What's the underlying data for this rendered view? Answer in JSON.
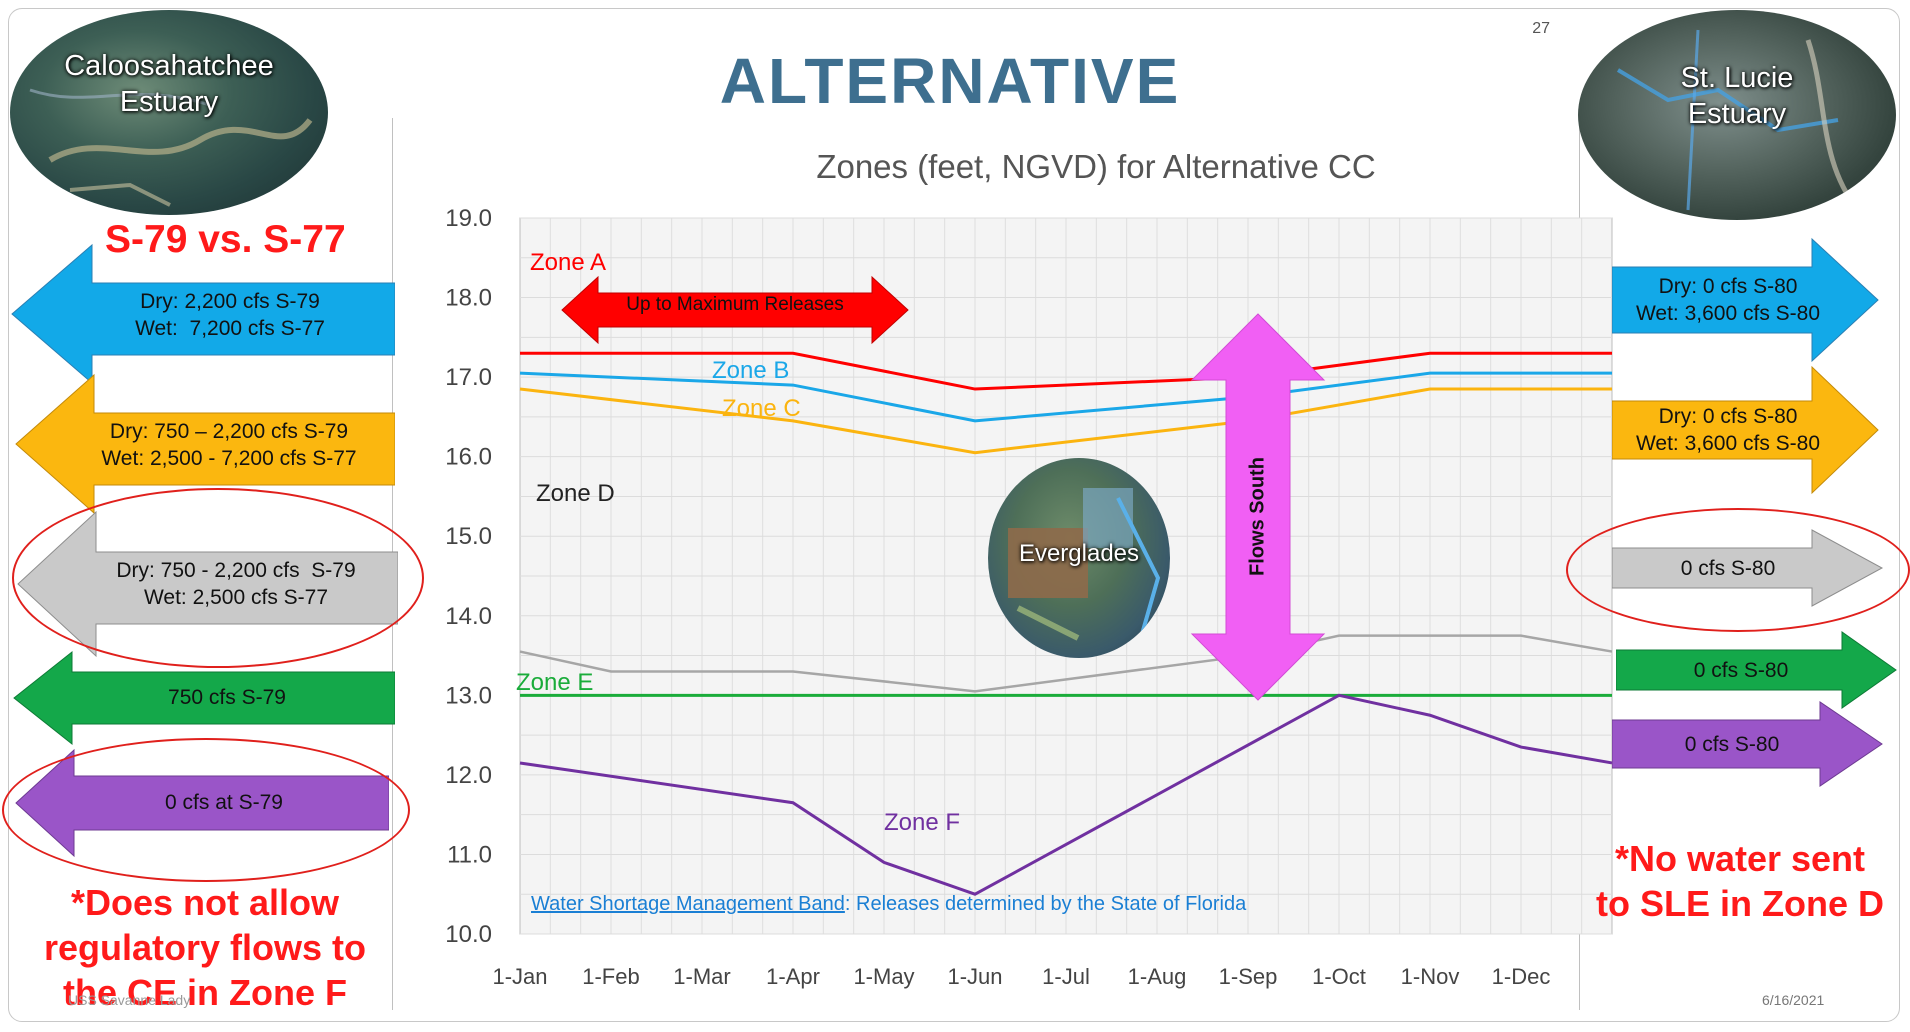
{
  "slide": {
    "title": "ALTERNATIVE CC",
    "page_number": "27",
    "date": "6/16/2021",
    "source_credit": "USS Savanne Lady"
  },
  "globes": {
    "left": "Caloosahatchee\nEstuary",
    "right": "St. Lucie\nEstuary",
    "center": "Everglades"
  },
  "left_panel": {
    "heading": "S-79 vs. S-77",
    "arrows": [
      {
        "zone": "A/B",
        "color": "#12a9e8",
        "text": "Dry: 2,200 cfs S-79\nWet:  7,200 cfs S-77"
      },
      {
        "zone": "C",
        "color": "#fbb70f",
        "text": "Dry: 750 – 2,200 cfs S-79\nWet: 2,500 - 7,200 cfs S-77"
      },
      {
        "zone": "D",
        "color": "#c9c9c9",
        "text": "Dry: 750 - 2,200 cfs  S-79\nWet: 2,500 cfs S-77"
      },
      {
        "zone": "E",
        "color": "#14a84a",
        "text": "750 cfs S-79"
      },
      {
        "zone": "F",
        "color": "#9a55c8",
        "text": "0 cfs at S-79"
      }
    ],
    "note": "*Does not allow\nregulatory flows to\nthe CE in Zone F"
  },
  "right_panel": {
    "arrows": [
      {
        "zone": "A/B",
        "color": "#12a9e8",
        "text": "Dry: 0 cfs S-80\nWet: 3,600 cfs S-80"
      },
      {
        "zone": "C",
        "color": "#fbb70f",
        "text": "Dry: 0 cfs S-80\nWet: 3,600 cfs S-80"
      },
      {
        "zone": "D",
        "color": "#c9c9c9",
        "text": "0 cfs S-80"
      },
      {
        "zone": "E",
        "color": "#14a84a",
        "text": "0 cfs S-80"
      },
      {
        "zone": "F",
        "color": "#9a55c8",
        "text": "0 cfs S-80"
      }
    ],
    "note": "*No water sent\nto SLE in Zone D"
  },
  "chart_annotations": {
    "max_release": "Up to Maximum Releases",
    "flows_south": "Flows South",
    "zone_d_label": "Zone D",
    "wsm_prefix": "Water Shortage Management Band",
    "wsm_suffix": ": Releases determined by the State of Florida"
  },
  "chart_data": {
    "type": "line",
    "title": "Zones (feet, NGVD) for Alternative CC",
    "xlabel": "",
    "ylabel": "",
    "x": [
      "1-Jan",
      "1-Feb",
      "1-Mar",
      "1-Apr",
      "1-May",
      "1-Jun",
      "1-Jul",
      "1-Aug",
      "1-Sep",
      "1-Oct",
      "1-Nov",
      "1-Dec",
      "31-Dec"
    ],
    "x_tick_labels": [
      "1-Jan",
      "1-Feb",
      "1-Mar",
      "1-Apr",
      "1-May",
      "1-Jun",
      "1-Jul",
      "1-Aug",
      "1-Sep",
      "1-Oct",
      "1-Nov",
      "1-Dec"
    ],
    "ylim": [
      10.0,
      19.0
    ],
    "yticks": [
      "10.0",
      "11.0",
      "12.0",
      "13.0",
      "14.0",
      "15.0",
      "16.0",
      "17.0",
      "18.0",
      "19.0"
    ],
    "grid": true,
    "series": [
      {
        "name": "Zone A",
        "color": "#ff0000",
        "points": [
          [
            "1-Jan",
            17.3
          ],
          [
            "1-Apr",
            17.3
          ],
          [
            "1-Jun",
            16.85
          ],
          [
            "1-Sep",
            17.0
          ],
          [
            "1-Nov",
            17.3
          ],
          [
            "31-Dec",
            17.3
          ]
        ]
      },
      {
        "name": "Zone B",
        "color": "#1aa7e8",
        "points": [
          [
            "1-Jan",
            17.05
          ],
          [
            "1-Apr",
            16.9
          ],
          [
            "1-Jun",
            16.45
          ],
          [
            "1-Sep",
            16.75
          ],
          [
            "1-Nov",
            17.05
          ],
          [
            "31-Dec",
            17.05
          ]
        ]
      },
      {
        "name": "Zone C",
        "color": "#fbb40f",
        "points": [
          [
            "1-Jan",
            16.85
          ],
          [
            "1-Apr",
            16.45
          ],
          [
            "1-Jun",
            16.05
          ],
          [
            "1-Sep",
            16.45
          ],
          [
            "1-Nov",
            16.85
          ],
          [
            "31-Dec",
            16.85
          ]
        ]
      },
      {
        "name": "",
        "color": "#a6a6a6",
        "points": [
          [
            "1-Jan",
            13.55
          ],
          [
            "1-Feb",
            13.3
          ],
          [
            "1-Apr",
            13.3
          ],
          [
            "1-Jun",
            13.05
          ],
          [
            "1-Sep",
            13.5
          ],
          [
            "1-Oct",
            13.75
          ],
          [
            "1-Dec",
            13.75
          ],
          [
            "31-Dec",
            13.55
          ]
        ]
      },
      {
        "name": "Zone E",
        "color": "#1aac3a",
        "points": [
          [
            "1-Jan",
            13.0
          ],
          [
            "31-Dec",
            13.0
          ]
        ]
      },
      {
        "name": "Zone F",
        "color": "#7030a0",
        "points": [
          [
            "1-Jan",
            12.15
          ],
          [
            "1-Apr",
            11.65
          ],
          [
            "1-May",
            10.9
          ],
          [
            "1-Jun",
            10.5
          ],
          [
            "1-Oct",
            13.0
          ],
          [
            "1-Nov",
            12.75
          ],
          [
            "1-Dec",
            12.35
          ],
          [
            "31-Dec",
            12.15
          ]
        ]
      }
    ]
  }
}
